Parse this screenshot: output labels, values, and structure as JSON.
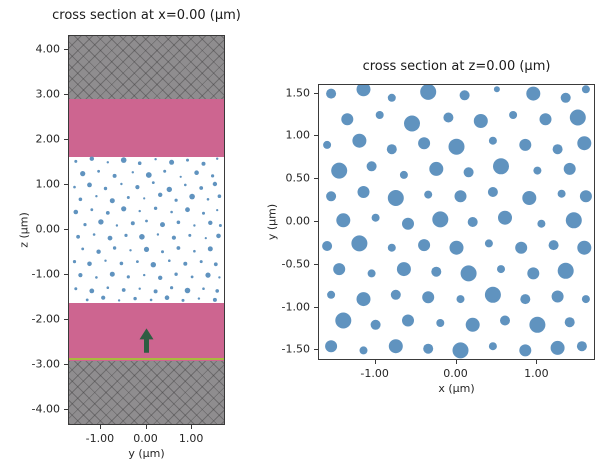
{
  "colors": {
    "scatter": "#6093bf",
    "cladding": "#cd6590",
    "absorber": "#8f8d8f",
    "source_line": "#a9b93e",
    "arrow": "#2e5d42",
    "spine": "#3a3a3a"
  },
  "chart_data": [
    {
      "type": "scatter",
      "title": "cross section at x=0.00 (μm)",
      "xlabel": "y (μm)",
      "ylabel": "z (μm)",
      "xlim": [
        -1.7,
        1.7
      ],
      "ylim": [
        -4.3,
        4.3
      ],
      "grid": false,
      "xticks": [
        {
          "v": -1,
          "label": "-1.00"
        },
        {
          "v": 0,
          "label": "0.00"
        },
        {
          "v": 1,
          "label": "1.00"
        }
      ],
      "yticks": [
        {
          "v": 4,
          "label": "4.00"
        },
        {
          "v": 3,
          "label": "3.00"
        },
        {
          "v": 2,
          "label": "2.00"
        },
        {
          "v": 1,
          "label": "1.00"
        },
        {
          "v": 0,
          "label": "0.00"
        },
        {
          "v": -1,
          "label": "-1.00"
        },
        {
          "v": -2,
          "label": "-2.00"
        },
        {
          "v": -3,
          "label": "-3.00"
        },
        {
          "v": -4,
          "label": "-4.00"
        }
      ],
      "layers": [
        {
          "name": "absorber-top",
          "zmin": 2.9,
          "zmax": 4.3,
          "fill": "gray-hatch"
        },
        {
          "name": "cladding-top",
          "zmin": 1.62,
          "zmax": 2.9,
          "fill": "pink"
        },
        {
          "name": "cladding-bottom",
          "zmin": -2.9,
          "zmax": -1.62,
          "fill": "pink"
        },
        {
          "name": "absorber-bottom",
          "zmin": -4.3,
          "zmax": -2.9,
          "fill": "gray-hatch"
        }
      ],
      "source_line_z": -2.87,
      "arrow": {
        "y": 0.0,
        "z_from": -2.72,
        "z_to": -2.18
      },
      "points": [
        [
          -1.55,
          1.52,
          1.5
        ],
        [
          -1.2,
          1.58,
          2.2
        ],
        [
          -0.85,
          1.5,
          1.2
        ],
        [
          -0.5,
          1.55,
          2.8
        ],
        [
          -0.15,
          1.48,
          1.8
        ],
        [
          0.2,
          1.57,
          1.2
        ],
        [
          0.55,
          1.5,
          2.5
        ],
        [
          0.9,
          1.55,
          1.5
        ],
        [
          1.25,
          1.47,
          2.0
        ],
        [
          1.55,
          1.58,
          1.2
        ],
        [
          -1.4,
          1.25,
          2.6
        ],
        [
          -1.05,
          1.3,
          1.4
        ],
        [
          -0.7,
          1.2,
          2.0
        ],
        [
          -0.3,
          1.28,
          1.2
        ],
        [
          0.05,
          1.22,
          2.9
        ],
        [
          0.4,
          1.3,
          1.5
        ],
        [
          0.75,
          1.18,
          1.1
        ],
        [
          1.1,
          1.27,
          2.3
        ],
        [
          1.45,
          1.2,
          1.6
        ],
        [
          -1.58,
          0.95,
          1.3
        ],
        [
          -1.25,
          1.0,
          2.4
        ],
        [
          -0.9,
          0.92,
          1.7
        ],
        [
          -0.55,
          1.02,
          1.2
        ],
        [
          -0.2,
          0.95,
          2.1
        ],
        [
          0.15,
          1.05,
          1.4
        ],
        [
          0.5,
          0.9,
          2.7
        ],
        [
          0.85,
          1.0,
          1.3
        ],
        [
          1.2,
          0.93,
          1.9
        ],
        [
          1.5,
          1.02,
          2.2
        ],
        [
          -1.45,
          0.68,
          1.8
        ],
        [
          -1.1,
          0.75,
          1.2
        ],
        [
          -0.75,
          0.65,
          2.5
        ],
        [
          -0.4,
          0.72,
          1.5
        ],
        [
          -0.05,
          0.7,
          1.1
        ],
        [
          0.3,
          0.78,
          2.2
        ],
        [
          0.65,
          0.66,
          1.6
        ],
        [
          1.0,
          0.74,
          2.8
        ],
        [
          1.35,
          0.68,
          1.3
        ],
        [
          1.6,
          0.75,
          1.8
        ],
        [
          -1.55,
          0.4,
          2.3
        ],
        [
          -1.2,
          0.45,
          1.4
        ],
        [
          -0.85,
          0.38,
          1.9
        ],
        [
          -0.5,
          0.47,
          2.6
        ],
        [
          -0.15,
          0.42,
          1.2
        ],
        [
          0.2,
          0.48,
          1.7
        ],
        [
          0.55,
          0.4,
          1.3
        ],
        [
          0.9,
          0.45,
          2.4
        ],
        [
          1.25,
          0.37,
          1.5
        ],
        [
          1.55,
          0.44,
          1.1
        ],
        [
          -1.35,
          0.12,
          1.6
        ],
        [
          -1.0,
          0.18,
          2.7
        ],
        [
          -0.65,
          0.1,
          1.2
        ],
        [
          -0.3,
          0.15,
          2.0
        ],
        [
          0.0,
          0.2,
          1.4
        ],
        [
          0.35,
          0.12,
          2.5
        ],
        [
          0.7,
          0.17,
          1.8
        ],
        [
          1.05,
          0.1,
          1.2
        ],
        [
          1.4,
          0.16,
          2.2
        ],
        [
          1.62,
          0.1,
          1.5
        ],
        [
          -1.5,
          -0.15,
          1.9
        ],
        [
          -1.15,
          -0.1,
          1.3
        ],
        [
          -0.8,
          -0.18,
          2.4
        ],
        [
          -0.45,
          -0.12,
          1.6
        ],
        [
          -0.1,
          -0.15,
          2.8
        ],
        [
          0.25,
          -0.1,
          1.2
        ],
        [
          0.6,
          -0.17,
          2.1
        ],
        [
          0.95,
          -0.12,
          1.5
        ],
        [
          1.3,
          -0.18,
          1.1
        ],
        [
          1.58,
          -0.13,
          2.3
        ],
        [
          -1.4,
          -0.42,
          1.4
        ],
        [
          -1.05,
          -0.48,
          2.2
        ],
        [
          -0.7,
          -0.4,
          1.7
        ],
        [
          -0.35,
          -0.45,
          1.2
        ],
        [
          0.0,
          -0.43,
          2.6
        ],
        [
          0.35,
          -0.48,
          1.5
        ],
        [
          0.7,
          -0.4,
          1.9
        ],
        [
          1.05,
          -0.47,
          1.3
        ],
        [
          1.4,
          -0.42,
          2.5
        ],
        [
          -1.58,
          -0.7,
          1.6
        ],
        [
          -1.25,
          -0.75,
          2.3
        ],
        [
          -0.9,
          -0.68,
          1.2
        ],
        [
          -0.55,
          -0.74,
          1.8
        ],
        [
          -0.2,
          -0.7,
          1.4
        ],
        [
          0.15,
          -0.77,
          2.7
        ],
        [
          0.5,
          -0.68,
          1.3
        ],
        [
          0.85,
          -0.75,
          2.0
        ],
        [
          1.2,
          -0.7,
          1.5
        ],
        [
          1.52,
          -0.76,
          1.9
        ],
        [
          -1.45,
          -1.0,
          2.1
        ],
        [
          -1.1,
          -1.05,
          1.3
        ],
        [
          -0.75,
          -0.98,
          2.5
        ],
        [
          -0.4,
          -1.04,
          1.6
        ],
        [
          -0.05,
          -1.0,
          1.2
        ],
        [
          0.3,
          -1.06,
          2.2
        ],
        [
          0.65,
          -0.98,
          1.7
        ],
        [
          1.0,
          -1.04,
          1.4
        ],
        [
          1.35,
          -1.0,
          2.6
        ],
        [
          1.6,
          -1.05,
          1.2
        ],
        [
          -1.55,
          -1.3,
          1.5
        ],
        [
          -1.2,
          -1.35,
          2.4
        ],
        [
          -0.85,
          -1.28,
          1.3
        ],
        [
          -0.5,
          -1.33,
          1.9
        ],
        [
          -0.15,
          -1.3,
          1.2
        ],
        [
          0.2,
          -1.36,
          2.0
        ],
        [
          0.55,
          -1.28,
          1.6
        ],
        [
          0.9,
          -1.34,
          2.8
        ],
        [
          1.25,
          -1.3,
          1.3
        ],
        [
          1.55,
          -1.35,
          1.8
        ],
        [
          -1.3,
          -1.55,
          1.4
        ],
        [
          -0.95,
          -1.5,
          2.1
        ],
        [
          -0.6,
          -1.56,
          1.2
        ],
        [
          -0.25,
          -1.52,
          1.7
        ],
        [
          0.1,
          -1.55,
          1.3
        ],
        [
          0.45,
          -1.5,
          2.3
        ],
        [
          0.8,
          -1.56,
          1.5
        ],
        [
          1.15,
          -1.52,
          1.2
        ],
        [
          1.5,
          -1.55,
          2.0
        ]
      ]
    },
    {
      "type": "scatter",
      "title": "cross section at z=0.00 (μm)",
      "xlabel": "x (μm)",
      "ylabel": "y (μm)",
      "xlim": [
        -1.7,
        1.7
      ],
      "ylim": [
        -1.6,
        1.6
      ],
      "grid": false,
      "xticks": [
        {
          "v": -1,
          "label": "-1.00"
        },
        {
          "v": 0,
          "label": "0.00"
        },
        {
          "v": 1,
          "label": "1.00"
        }
      ],
      "yticks": [
        {
          "v": 1.5,
          "label": "1.50"
        },
        {
          "v": 1.0,
          "label": "1.00"
        },
        {
          "v": 0.5,
          "label": "0.50"
        },
        {
          "v": 0.0,
          "label": "0.00"
        },
        {
          "v": -0.5,
          "label": "-0.50"
        },
        {
          "v": -1.0,
          "label": "-1.00"
        },
        {
          "v": -1.5,
          "label": "-1.50"
        }
      ],
      "points": [
        [
          -1.55,
          1.5,
          5
        ],
        [
          -1.15,
          1.55,
          7
        ],
        [
          -0.8,
          1.45,
          4
        ],
        [
          -0.35,
          1.52,
          8
        ],
        [
          0.1,
          1.48,
          5
        ],
        [
          0.5,
          1.55,
          3
        ],
        [
          0.95,
          1.5,
          7
        ],
        [
          1.35,
          1.45,
          5
        ],
        [
          1.6,
          1.55,
          4
        ],
        [
          -1.35,
          1.2,
          6
        ],
        [
          -0.95,
          1.25,
          4
        ],
        [
          -0.55,
          1.15,
          8
        ],
        [
          -0.1,
          1.22,
          5
        ],
        [
          0.3,
          1.18,
          7
        ],
        [
          0.7,
          1.25,
          4
        ],
        [
          1.1,
          1.2,
          6
        ],
        [
          1.5,
          1.22,
          8
        ],
        [
          -1.6,
          0.9,
          4
        ],
        [
          -1.2,
          0.95,
          7
        ],
        [
          -0.8,
          0.85,
          5
        ],
        [
          -0.4,
          0.92,
          6
        ],
        [
          0.0,
          0.88,
          8
        ],
        [
          0.45,
          0.95,
          4
        ],
        [
          0.85,
          0.9,
          6
        ],
        [
          1.25,
          0.85,
          5
        ],
        [
          1.58,
          0.92,
          7
        ],
        [
          -1.45,
          0.6,
          8
        ],
        [
          -1.05,
          0.65,
          5
        ],
        [
          -0.65,
          0.55,
          4
        ],
        [
          -0.25,
          0.62,
          7
        ],
        [
          0.15,
          0.58,
          5
        ],
        [
          0.55,
          0.65,
          8
        ],
        [
          1.0,
          0.6,
          4
        ],
        [
          1.4,
          0.62,
          6
        ],
        [
          -1.55,
          0.3,
          5
        ],
        [
          -1.15,
          0.35,
          6
        ],
        [
          -0.75,
          0.28,
          8
        ],
        [
          -0.35,
          0.32,
          4
        ],
        [
          0.05,
          0.3,
          6
        ],
        [
          0.45,
          0.35,
          5
        ],
        [
          0.9,
          0.28,
          7
        ],
        [
          1.3,
          0.33,
          4
        ],
        [
          1.6,
          0.3,
          6
        ],
        [
          -1.4,
          0.02,
          7
        ],
        [
          -1.0,
          0.05,
          4
        ],
        [
          -0.6,
          -0.02,
          6
        ],
        [
          -0.2,
          0.03,
          8
        ],
        [
          0.2,
          0.0,
          5
        ],
        [
          0.6,
          0.05,
          7
        ],
        [
          1.05,
          -0.02,
          4
        ],
        [
          1.45,
          0.02,
          8
        ],
        [
          -1.6,
          -0.28,
          5
        ],
        [
          -1.2,
          -0.25,
          8
        ],
        [
          -0.8,
          -0.3,
          4
        ],
        [
          -0.4,
          -0.27,
          6
        ],
        [
          0.0,
          -0.3,
          7
        ],
        [
          0.4,
          -0.25,
          4
        ],
        [
          0.8,
          -0.3,
          6
        ],
        [
          1.2,
          -0.27,
          5
        ],
        [
          1.58,
          -0.3,
          7
        ],
        [
          -1.45,
          -0.55,
          6
        ],
        [
          -1.05,
          -0.6,
          4
        ],
        [
          -0.65,
          -0.55,
          7
        ],
        [
          -0.25,
          -0.58,
          5
        ],
        [
          0.15,
          -0.6,
          8
        ],
        [
          0.55,
          -0.55,
          4
        ],
        [
          0.95,
          -0.6,
          6
        ],
        [
          1.35,
          -0.57,
          8
        ],
        [
          -1.55,
          -0.85,
          4
        ],
        [
          -1.15,
          -0.9,
          7
        ],
        [
          -0.75,
          -0.85,
          5
        ],
        [
          -0.35,
          -0.88,
          6
        ],
        [
          0.05,
          -0.9,
          4
        ],
        [
          0.45,
          -0.85,
          8
        ],
        [
          0.85,
          -0.9,
          5
        ],
        [
          1.25,
          -0.87,
          6
        ],
        [
          1.6,
          -0.9,
          4
        ],
        [
          -1.4,
          -1.15,
          8
        ],
        [
          -1.0,
          -1.2,
          5
        ],
        [
          -0.6,
          -1.15,
          6
        ],
        [
          -0.2,
          -1.18,
          4
        ],
        [
          0.2,
          -1.2,
          7
        ],
        [
          0.6,
          -1.15,
          5
        ],
        [
          1.0,
          -1.2,
          8
        ],
        [
          1.4,
          -1.17,
          5
        ],
        [
          -1.55,
          -1.45,
          6
        ],
        [
          -1.15,
          -1.5,
          4
        ],
        [
          -0.75,
          -1.45,
          7
        ],
        [
          -0.35,
          -1.48,
          5
        ],
        [
          0.05,
          -1.5,
          8
        ],
        [
          0.45,
          -1.45,
          4
        ],
        [
          0.85,
          -1.5,
          6
        ],
        [
          1.25,
          -1.47,
          7
        ],
        [
          1.55,
          -1.45,
          5
        ]
      ]
    }
  ]
}
